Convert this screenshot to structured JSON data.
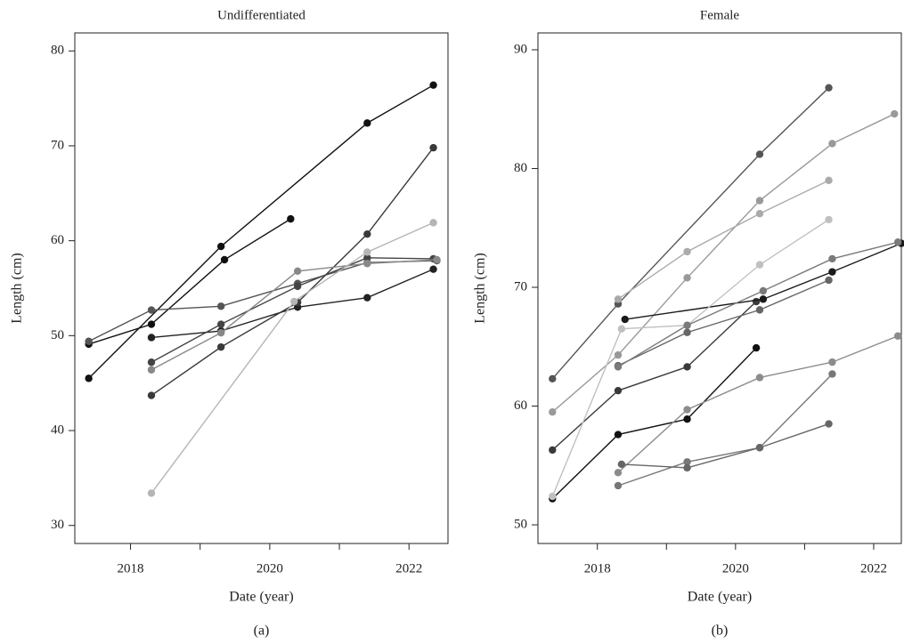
{
  "chart_data": [
    {
      "type": "line",
      "title": "Undifferentiated",
      "x_label": "Date (year)",
      "y_label": "Length (cm)",
      "caption": "(a)",
      "xlim": [
        2017.2,
        2022.56
      ],
      "ylim": [
        28.1,
        81.9
      ],
      "xticks": [
        2018,
        2020,
        2022
      ],
      "xminor_ticks": [
        2019,
        2021
      ],
      "yticks": [
        30,
        40,
        50,
        60,
        70,
        80
      ],
      "series": [
        {
          "color": "#111111",
          "x": [
            2017.4,
            2019.3,
            2021.4,
            2022.35
          ],
          "values": [
            45.5,
            59.4,
            72.4,
            76.4
          ]
        },
        {
          "color": "#111111",
          "x": [
            2017.4,
            2018.3,
            2019.35,
            2020.3
          ],
          "values": [
            49.1,
            51.2,
            58.0,
            62.3
          ]
        },
        {
          "color": "#555555",
          "x": [
            2017.4,
            2018.3,
            2019.3,
            2020.4,
            2021.4,
            2022.4
          ],
          "values": [
            49.4,
            52.7,
            53.1,
            55.5,
            57.7,
            57.9
          ]
        },
        {
          "color": "#222222",
          "x": [
            2018.3,
            2019.3,
            2020.4,
            2021.4,
            2022.35
          ],
          "values": [
            49.8,
            50.5,
            53.0,
            54.0,
            57.0
          ]
        },
        {
          "color": "#3a3a3a",
          "x": [
            2018.3,
            2019.3,
            2020.4,
            2021.4,
            2022.35
          ],
          "values": [
            43.7,
            48.8,
            53.5,
            60.7,
            69.8
          ]
        },
        {
          "color": "#444444",
          "x": [
            2018.3,
            2019.3,
            2020.4,
            2021.4,
            2022.35
          ],
          "values": [
            47.2,
            51.2,
            55.2,
            58.2,
            58.1
          ]
        },
        {
          "color": "#888888",
          "x": [
            2018.3,
            2019.3,
            2020.4,
            2021.4,
            2022.4
          ],
          "values": [
            46.4,
            50.3,
            56.8,
            57.6,
            58.0
          ]
        },
        {
          "color": "#b5b5b5",
          "x": [
            2018.3,
            2020.35,
            2021.4,
            2022.35
          ],
          "values": [
            33.4,
            53.6,
            58.8,
            61.9
          ]
        }
      ]
    },
    {
      "type": "line",
      "title": "Female",
      "x_label": "Date (year)",
      "y_label": "Length (cm)",
      "caption": "(b)",
      "xlim": [
        2017.14,
        2022.4
      ],
      "ylim": [
        48.43,
        91.42
      ],
      "xticks": [
        2018,
        2020,
        2022
      ],
      "xminor_ticks": [
        2019,
        2021
      ],
      "yticks": [
        50,
        60,
        70,
        80,
        90
      ],
      "series": [
        {
          "color": "#555555",
          "x": [
            2017.35,
            2018.3,
            2020.35,
            2021.35
          ],
          "values": [
            62.3,
            68.6,
            81.2,
            86.8
          ]
        },
        {
          "color": "#999999",
          "x": [
            2017.35,
            2018.3,
            2019.3,
            2020.35,
            2021.4,
            2022.3
          ],
          "values": [
            59.5,
            64.3,
            70.8,
            77.3,
            82.1,
            84.6
          ]
        },
        {
          "color": "#3a3a3a",
          "x": [
            2017.35,
            2018.3,
            2019.3,
            2020.3
          ],
          "values": [
            56.3,
            61.3,
            63.3,
            68.8
          ]
        },
        {
          "color": "#1a1a1a",
          "x": [
            2018.4,
            2020.4,
            2021.4,
            2022.4
          ],
          "values": [
            67.3,
            69.0,
            71.3,
            73.7
          ]
        },
        {
          "color": "#111111",
          "x": [
            2017.35,
            2018.3,
            2019.3,
            2020.3
          ],
          "values": [
            52.2,
            57.6,
            58.9,
            64.9
          ]
        },
        {
          "color": "#c0c0c0",
          "x": [
            2017.35,
            2018.35,
            2019.3,
            2020.35,
            2021.35
          ],
          "values": [
            52.4,
            66.5,
            66.8,
            71.9,
            75.7
          ]
        },
        {
          "color": "#aaaaaa",
          "x": [
            2018.3,
            2019.3,
            2020.35,
            2021.35
          ],
          "values": [
            69.0,
            73.0,
            76.2,
            79.0
          ]
        },
        {
          "color": "#666666",
          "x": [
            2018.3,
            2019.3,
            2020.35,
            2021.35
          ],
          "values": [
            63.4,
            66.2,
            68.1,
            70.6
          ]
        },
        {
          "color": "#7a7a7a",
          "x": [
            2018.3,
            2019.3,
            2020.4,
            2021.4,
            2022.35
          ],
          "values": [
            63.3,
            66.8,
            69.7,
            72.4,
            73.8
          ]
        },
        {
          "color": "#8c8c8c",
          "x": [
            2018.3,
            2019.3,
            2020.35,
            2021.4,
            2022.35
          ],
          "values": [
            54.4,
            59.7,
            62.4,
            63.7,
            65.9
          ]
        },
        {
          "color": "#777777",
          "x": [
            2018.3,
            2019.3,
            2020.35,
            2021.4
          ],
          "values": [
            53.3,
            55.3,
            56.5,
            62.7
          ]
        },
        {
          "color": "#666666",
          "x": [
            2018.35,
            2019.3,
            2020.35,
            2021.35
          ],
          "values": [
            55.1,
            54.8,
            56.5,
            58.5
          ]
        }
      ]
    }
  ]
}
